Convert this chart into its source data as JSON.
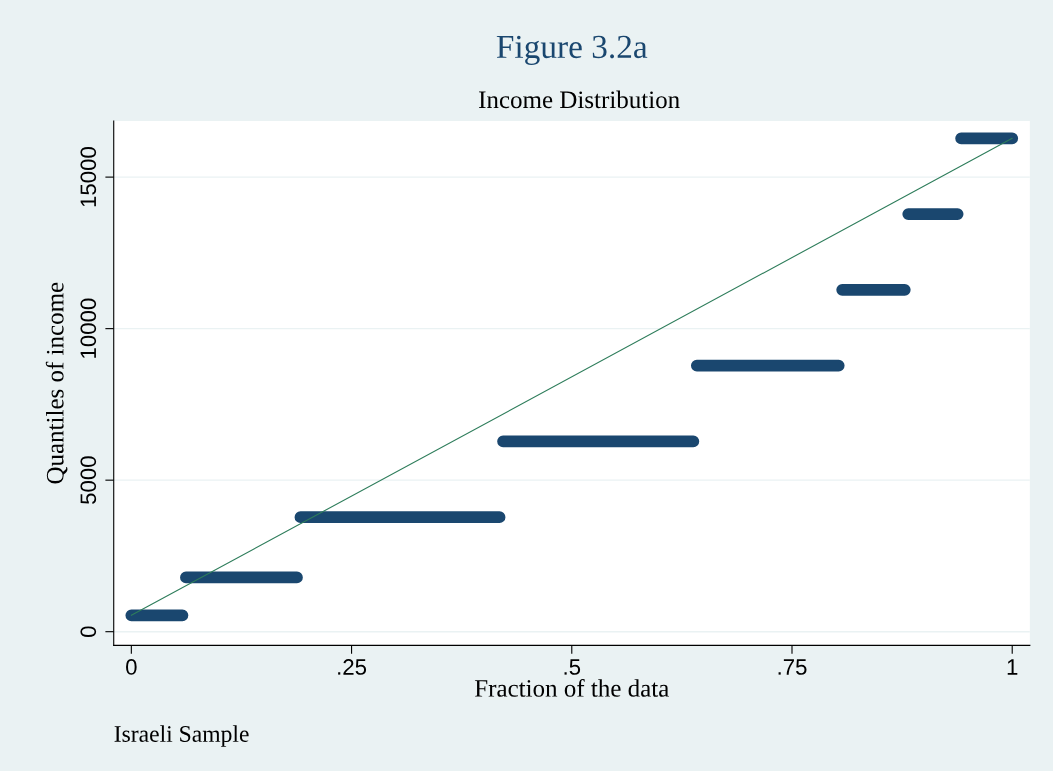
{
  "chart_data": {
    "type": "line",
    "title": "Figure 3.2a",
    "subtitle": "Income Distribution",
    "xlabel": "Fraction of the data",
    "ylabel": "Quantiles of income",
    "annotations": [
      "Israeli Sample"
    ],
    "series": [
      {
        "color": "#1a476f",
        "x": [
          0,
          0.058,
          0.06,
          0.062,
          0.188,
          0.19,
          0.192,
          0.418,
          0.42,
          0.422,
          0.638,
          0.64,
          0.642,
          0.803,
          0.805,
          0.807,
          0.878,
          0.88,
          0.882,
          0.938,
          0.94,
          0.942,
          1
        ],
        "values": [
          540,
          540,
          null,
          1790,
          1790,
          null,
          3780,
          3780,
          null,
          6280,
          6280,
          null,
          8780,
          8780,
          null,
          11280,
          11280,
          null,
          13780,
          13780,
          null,
          16280,
          16280
        ]
      },
      {
        "color": "#2e7d5b",
        "x": [
          0,
          1
        ],
        "values": [
          540,
          16280
        ]
      }
    ],
    "xlim": [
      -0.02,
      1.02
    ],
    "ylim": [
      -450,
      16850
    ],
    "xticks": [
      0,
      {
        "value": 0.25,
        "label": ".25"
      },
      {
        "value": 0.5,
        "label": ".5"
      },
      {
        "value": 0.75,
        "label": ".75"
      },
      1
    ],
    "yticks": [
      0,
      5000,
      10000,
      15000
    ],
    "grid": "y",
    "legend": false
  }
}
